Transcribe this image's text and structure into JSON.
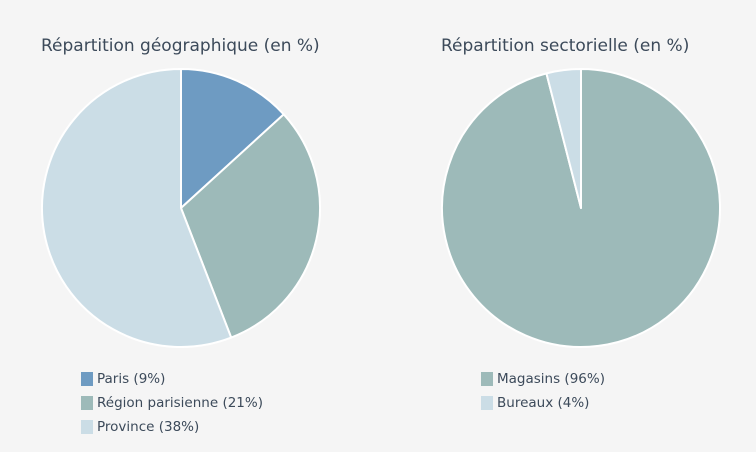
{
  "chart_data": [
    {
      "type": "pie",
      "title": "Répartition géographique (en %)",
      "slices": [
        {
          "label": "Paris (9%)",
          "value": 9,
          "color": "#6e9bc2"
        },
        {
          "label": "Région parisienne (21%)",
          "value": 21,
          "color": "#9dbab9"
        },
        {
          "label": "Province (38%)",
          "value": 38,
          "color": "#cbdde6"
        }
      ],
      "legend_placement": "bottom-left"
    },
    {
      "type": "pie",
      "title": "Répartition sectorielle (en %)",
      "slices": [
        {
          "label": "Magasins (96%)",
          "value": 96,
          "color": "#9dbab9"
        },
        {
          "label": "Bureaux (4%)",
          "value": 4,
          "color": "#cbdde6"
        }
      ],
      "legend_placement": "bottom-left"
    }
  ]
}
